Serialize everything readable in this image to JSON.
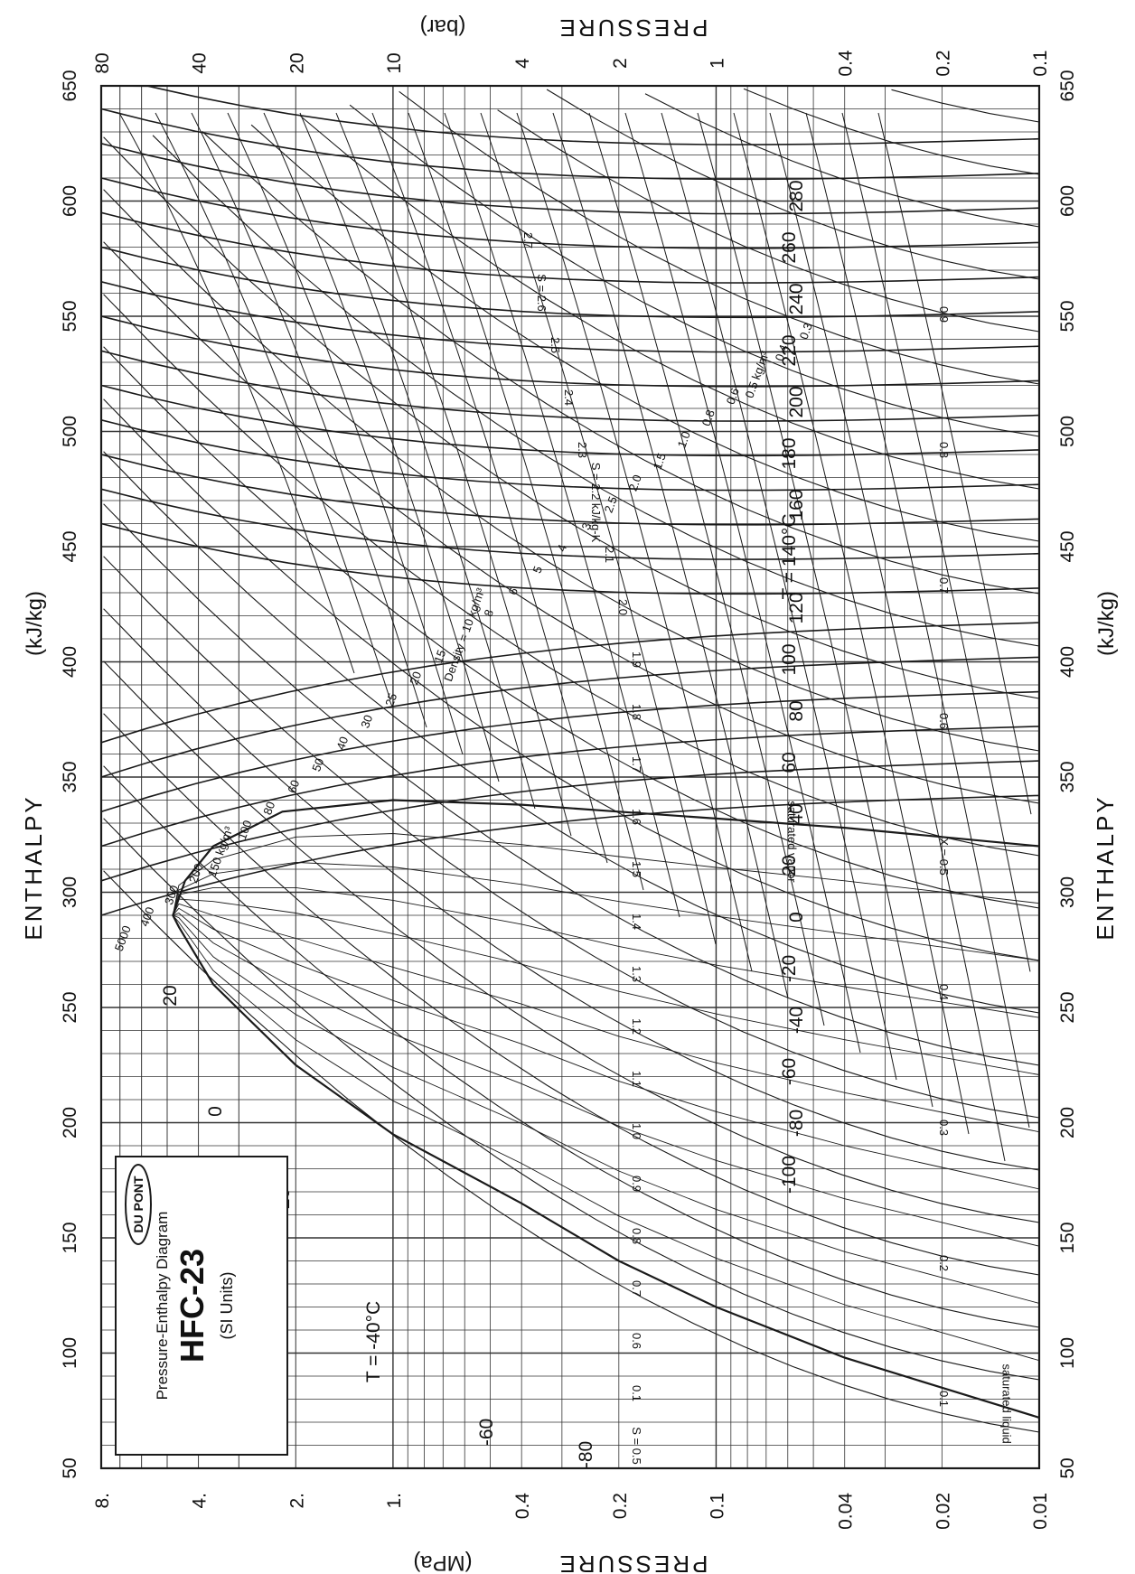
{
  "chart_data": {
    "type": "line",
    "title": "HFC-23",
    "subtitle": "Pressure-Enthalpy Diagram",
    "units_note": "(SI Units)",
    "logo_text": "DU PONT",
    "axes": {
      "enthalpy": {
        "label": "ENTHALPY",
        "unit": "(kJ/kg)",
        "range": [
          50,
          650
        ],
        "ticks": [
          "50",
          "100",
          "150",
          "200",
          "250",
          "300",
          "350",
          "400",
          "450",
          "500",
          "550",
          "600",
          "650"
        ]
      },
      "pressure_mpa": {
        "label": "PRESSURE",
        "unit": "(MPa)",
        "scale": "log",
        "range": [
          0.01,
          8
        ],
        "ticks": [
          "0.01",
          "0.02",
          "0.04",
          "0.1",
          "0.2",
          "0.4",
          "1.",
          "2.",
          "4.",
          "8."
        ]
      },
      "pressure_bar": {
        "label": "PRESSURE",
        "unit": "(bar)",
        "scale": "log",
        "range": [
          0.1,
          80
        ],
        "ticks": [
          "0.1",
          "0.2",
          "0.4",
          "1",
          "2",
          "4",
          "10",
          "20",
          "40",
          "80"
        ]
      }
    },
    "grid": true,
    "dome": {
      "liquid_label": "saturated liquid",
      "vapor_label": "saturated vapor",
      "liquid": [
        [
          72,
          0.01
        ],
        [
          85,
          0.02
        ],
        [
          98,
          0.04
        ],
        [
          120,
          0.1
        ],
        [
          140,
          0.2
        ],
        [
          165,
          0.4
        ],
        [
          195,
          1.0
        ],
        [
          225,
          2.0
        ],
        [
          260,
          3.6
        ],
        [
          285,
          4.6
        ],
        [
          290,
          4.8
        ]
      ],
      "vapor": [
        [
          290,
          4.8
        ],
        [
          305,
          4.4
        ],
        [
          320,
          3.6
        ],
        [
          335,
          2.2
        ],
        [
          340,
          1.0
        ],
        [
          338,
          0.4
        ],
        [
          335,
          0.2
        ],
        [
          332,
          0.1
        ],
        [
          328,
          0.04
        ],
        [
          324,
          0.02
        ],
        [
          320,
          0.01
        ]
      ]
    },
    "isotherm_labels": [
      "T = -40°C",
      "-20",
      "0",
      "20",
      "-60",
      "-80",
      "-100",
      "-80",
      "-60",
      "-40",
      "-20",
      "0",
      "20",
      "40",
      "60",
      "80",
      "100",
      "120",
      "T = 140°C",
      "160",
      "180",
      "200",
      "220",
      "240",
      "260",
      "280"
    ],
    "isentrope_labels": [
      "S = 0.5",
      "0.1",
      "0.6",
      "0.7",
      "0.8",
      "0.9",
      "1.0",
      "1.1",
      "1.2",
      "1.3",
      "1.4",
      "1.5",
      "1.6",
      "1.7",
      "1.8",
      "1.9",
      "2.0",
      "2.1",
      "S = 2.2 kJ/kg-K",
      "2.3",
      "2.4",
      "2.5",
      "S = 2.6",
      "2.7"
    ],
    "density_labels": [
      "5000",
      "400",
      "300",
      "200",
      "150 kg/m³",
      "100",
      "80",
      "60",
      "50",
      "40",
      "30",
      "25",
      "20",
      "15",
      "Density = 10 kg/m³",
      "8",
      "6",
      "5",
      "4",
      "3",
      "2.5",
      "2.0",
      "1.5",
      "1.0",
      "0.8",
      "0.6",
      "0.5 kg/m³",
      "0.4",
      "0.3"
    ],
    "quality_labels": [
      "0.1",
      "0.2",
      "0.3",
      "0.4",
      "X = 0.5",
      "0.6",
      "0.7",
      "0.8",
      "0.9"
    ]
  }
}
